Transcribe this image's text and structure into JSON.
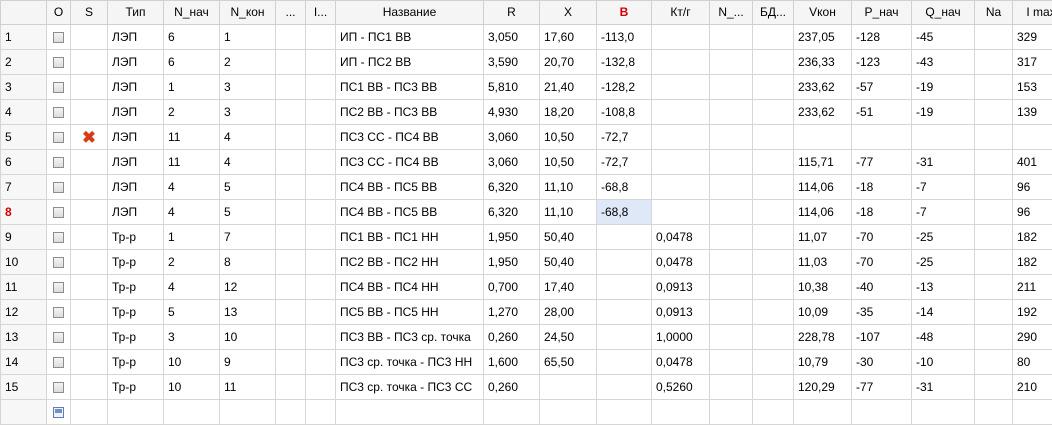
{
  "columns": [
    "",
    "O",
    "S",
    "Тип",
    "N_нач",
    "N_кон",
    "...",
    "I...",
    "Название",
    "R",
    "X",
    "B",
    "Кт/г",
    "N_...",
    "БД...",
    "Vкон",
    "P_нач",
    "Q_нач",
    "Na",
    "I max"
  ],
  "colors": {
    "header_highlight": "#d40000",
    "current_row": "#d40000",
    "selected_cell": "#dfe8f6"
  },
  "icons": {
    "excluded": "red-x-icon",
    "checkbox": "checkbox-icon",
    "new_row": "new-row-icon"
  },
  "rows": [
    {
      "num": "1",
      "s": "",
      "type": "ЛЭП",
      "n_start": "6",
      "n_end": "1",
      "name": "ИП - ПС1 ВВ",
      "r": "3,050",
      "x": "17,60",
      "b": "-113,0",
      "kt": "",
      "vkon": "237,05",
      "p": "-128",
      "q": "-45",
      "na": "",
      "imax": "329"
    },
    {
      "num": "2",
      "s": "",
      "type": "ЛЭП",
      "n_start": "6",
      "n_end": "2",
      "name": "ИП - ПС2 ВВ",
      "r": "3,590",
      "x": "20,70",
      "b": "-132,8",
      "kt": "",
      "vkon": "236,33",
      "p": "-123",
      "q": "-43",
      "na": "",
      "imax": "317"
    },
    {
      "num": "3",
      "s": "",
      "type": "ЛЭП",
      "n_start": "1",
      "n_end": "3",
      "name": "ПС1 ВВ - ПС3 ВВ",
      "r": "5,810",
      "x": "21,40",
      "b": "-128,2",
      "kt": "",
      "vkon": "233,62",
      "p": "-57",
      "q": "-19",
      "na": "",
      "imax": "153"
    },
    {
      "num": "4",
      "s": "",
      "type": "ЛЭП",
      "n_start": "2",
      "n_end": "3",
      "name": "ПС2 ВВ - ПС3 ВВ",
      "r": "4,930",
      "x": "18,20",
      "b": "-108,8",
      "kt": "",
      "vkon": "233,62",
      "p": "-51",
      "q": "-19",
      "na": "",
      "imax": "139"
    },
    {
      "num": "5",
      "s": "x",
      "type": "ЛЭП",
      "n_start": "11",
      "n_end": "4",
      "name": "ПС3 СС - ПС4 ВВ",
      "r": "3,060",
      "x": "10,50",
      "b": "-72,7",
      "kt": "",
      "vkon": "",
      "p": "",
      "q": "",
      "na": "",
      "imax": ""
    },
    {
      "num": "6",
      "s": "",
      "type": "ЛЭП",
      "n_start": "11",
      "n_end": "4",
      "name": "ПС3 СС - ПС4 ВВ",
      "r": "3,060",
      "x": "10,50",
      "b": "-72,7",
      "kt": "",
      "vkon": "115,71",
      "p": "-77",
      "q": "-31",
      "na": "",
      "imax": "401"
    },
    {
      "num": "7",
      "s": "",
      "type": "ЛЭП",
      "n_start": "4",
      "n_end": "5",
      "name": "ПС4 ВВ - ПС5 ВВ",
      "r": "6,320",
      "x": "11,10",
      "b": "-68,8",
      "kt": "",
      "vkon": "114,06",
      "p": "-18",
      "q": "-7",
      "na": "",
      "imax": "96"
    },
    {
      "num": "8",
      "s": "",
      "type": "ЛЭП",
      "n_start": "4",
      "n_end": "5",
      "name": "ПС4 ВВ - ПС5 ВВ",
      "r": "6,320",
      "x": "11,10",
      "b": "-68,8",
      "kt": "",
      "vkon": "114,06",
      "p": "-18",
      "q": "-7",
      "na": "",
      "imax": "96",
      "current": true
    },
    {
      "num": "9",
      "s": "",
      "type": "Тр-р",
      "n_start": "1",
      "n_end": "7",
      "name": "ПС1 ВВ - ПС1 НН",
      "r": "1,950",
      "x": "50,40",
      "b": "",
      "kt": "0,0478",
      "vkon": "11,07",
      "p": "-70",
      "q": "-25",
      "na": "",
      "imax": "182"
    },
    {
      "num": "10",
      "s": "",
      "type": "Тр-р",
      "n_start": "2",
      "n_end": "8",
      "name": "ПС2 ВВ - ПС2 НН",
      "r": "1,950",
      "x": "50,40",
      "b": "",
      "kt": "0,0478",
      "vkon": "11,03",
      "p": "-70",
      "q": "-25",
      "na": "",
      "imax": "182"
    },
    {
      "num": "11",
      "s": "",
      "type": "Тр-р",
      "n_start": "4",
      "n_end": "12",
      "name": "ПС4 ВВ - ПС4 НН",
      "r": "0,700",
      "x": "17,40",
      "b": "",
      "kt": "0,0913",
      "vkon": "10,38",
      "p": "-40",
      "q": "-13",
      "na": "",
      "imax": "211"
    },
    {
      "num": "12",
      "s": "",
      "type": "Тр-р",
      "n_start": "5",
      "n_end": "13",
      "name": "ПС5 ВВ - ПС5 НН",
      "r": "1,270",
      "x": "28,00",
      "b": "",
      "kt": "0,0913",
      "vkon": "10,09",
      "p": "-35",
      "q": "-14",
      "na": "",
      "imax": "192"
    },
    {
      "num": "13",
      "s": "",
      "type": "Тр-р",
      "n_start": "3",
      "n_end": "10",
      "name": "ПС3 ВВ - ПС3 ср. точка",
      "r": "0,260",
      "x": "24,50",
      "b": "",
      "kt": "1,0000",
      "vkon": "228,78",
      "p": "-107",
      "q": "-48",
      "na": "",
      "imax": "290"
    },
    {
      "num": "14",
      "s": "",
      "type": "Тр-р",
      "n_start": "10",
      "n_end": "9",
      "name": "ПС3 ср. точка - ПС3 НН",
      "r": "1,600",
      "x": "65,50",
      "b": "",
      "kt": "0,0478",
      "vkon": "10,79",
      "p": "-30",
      "q": "-10",
      "na": "",
      "imax": "80"
    },
    {
      "num": "15",
      "s": "",
      "type": "Тр-р",
      "n_start": "10",
      "n_end": "11",
      "name": "ПС3 ср. точка - ПС3 СС",
      "r": "0,260",
      "x": "",
      "b": "",
      "kt": "0,5260",
      "vkon": "120,29",
      "p": "-77",
      "q": "-31",
      "na": "",
      "imax": "210"
    }
  ]
}
